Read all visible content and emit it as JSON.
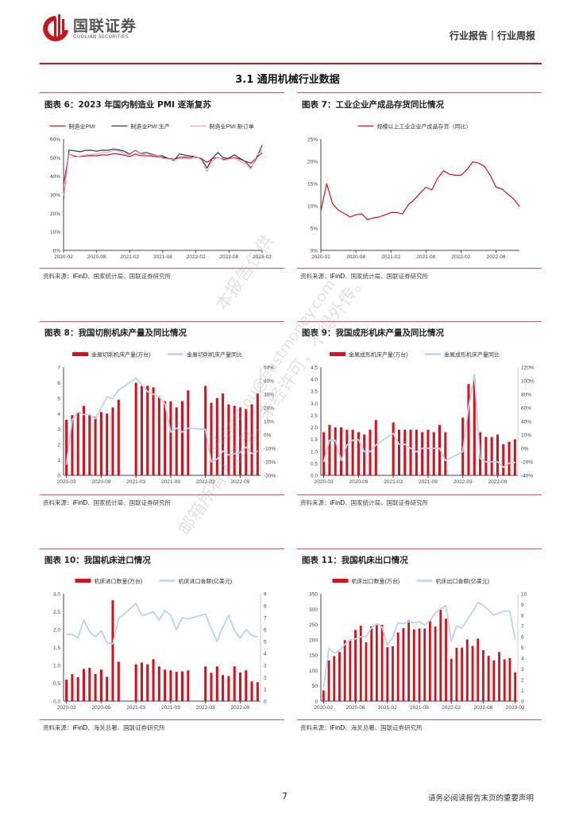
{
  "header": {
    "logo_cn": "国联证券",
    "logo_en": "GUOLIAN SECURITIES",
    "category": "行业报告｜行业周报"
  },
  "section_title": "3.1 通用机械行业数据",
  "figures": [
    {
      "title": "图表 6：2023 年国内制造业 PMI 逐渐复苏",
      "source_label": "资料来源：",
      "source_ifind": "iFinD",
      "source_rest": "、国家统计局、国联证券研究所"
    },
    {
      "title": "图表 7：工业企业产成品存货同比情况",
      "source_label": "资料来源：",
      "source_ifind": "iFinD",
      "source_rest": "、国家统计局、国联证券研究所"
    },
    {
      "title": "图表 8：我国切削机床产量及同比情况",
      "source_label": "资料来源：",
      "source_ifind": "iFinD",
      "source_rest": "、国家统计局、国联证券研究所"
    },
    {
      "title": "图表 9：我国成形机床产量及同比情况",
      "source_label": "资料来源：",
      "source_ifind": "iFinD",
      "source_rest": "、国家统计局、国联证券研究所"
    },
    {
      "title": "图表 10：我国机床进口情况",
      "source_label": "资料来源：",
      "source_ifind": "iFinD",
      "source_rest": "、海关总署、国联证券研究所"
    },
    {
      "title": "图表 11：我国机床出口情况",
      "source_label": "资料来源：",
      "source_ifind": "iFinD",
      "source_rest": "、海关总署、国联证券研究所"
    }
  ],
  "chart_data": [
    {
      "type": "line",
      "x": [
        "2020-02",
        "2020-03",
        "2020-04",
        "2020-05",
        "2020-06",
        "2020-07",
        "2020-08",
        "2020-09",
        "2020-10",
        "2020-11",
        "2020-12",
        "2021-01",
        "2021-02",
        "2021-03",
        "2021-04",
        "2021-05",
        "2021-06",
        "2021-07",
        "2021-08",
        "2021-09",
        "2021-10",
        "2021-11",
        "2021-12",
        "2022-01",
        "2022-02",
        "2022-03",
        "2022-04",
        "2022-05",
        "2022-06",
        "2022-07",
        "2022-08",
        "2022-09",
        "2022-10",
        "2022-11",
        "2022-12",
        "2023-01",
        "2023-02"
      ],
      "xticks": [
        "2020-02",
        "2020-08",
        "2021-02",
        "2021-08",
        "2022-02",
        "2022-08",
        "2023-02"
      ],
      "ylim": [
        0,
        60
      ],
      "yticks": [
        "0%",
        "10%",
        "20%",
        "30%",
        "40%",
        "50%",
        "60%"
      ],
      "legend": "top",
      "series": [
        {
          "name": "制造业PMI",
          "color": "#d7101c",
          "values": [
            35.7,
            52.0,
            50.8,
            50.6,
            50.9,
            51.1,
            51.0,
            51.5,
            51.4,
            52.1,
            51.9,
            51.3,
            50.6,
            51.9,
            51.1,
            51.0,
            50.9,
            50.4,
            50.1,
            49.6,
            49.2,
            50.1,
            50.3,
            50.1,
            50.2,
            49.5,
            47.4,
            49.6,
            50.2,
            49.0,
            49.4,
            50.1,
            49.2,
            48.0,
            47.0,
            50.1,
            52.6
          ]
        },
        {
          "name": "制造业PMI:生产",
          "color": "#1f3a6e",
          "values": [
            27.8,
            54.1,
            53.7,
            53.2,
            53.9,
            54.0,
            53.5,
            54.0,
            53.9,
            54.7,
            54.2,
            53.5,
            51.9,
            53.9,
            52.2,
            52.7,
            51.9,
            51.0,
            50.9,
            49.5,
            48.4,
            52.0,
            51.4,
            50.9,
            50.4,
            49.5,
            44.4,
            49.7,
            52.8,
            49.8,
            49.8,
            51.5,
            49.6,
            47.8,
            44.6,
            49.8,
            56.7
          ]
        },
        {
          "name": "制造业PMI:新订单",
          "color": "#f3a3ab",
          "values": [
            29.3,
            52.0,
            50.2,
            50.9,
            51.4,
            51.7,
            52.0,
            52.8,
            52.8,
            53.9,
            53.6,
            52.3,
            51.5,
            53.6,
            52.0,
            51.3,
            51.5,
            50.9,
            49.6,
            49.3,
            48.8,
            49.4,
            49.7,
            49.3,
            50.7,
            48.8,
            42.6,
            48.2,
            50.4,
            48.5,
            49.2,
            49.8,
            48.1,
            46.4,
            43.9,
            50.9,
            54.1
          ]
        }
      ]
    },
    {
      "type": "line",
      "x": [
        "2020-02",
        "2020-03",
        "2020-04",
        "2020-05",
        "2020-06",
        "2020-07",
        "2020-08",
        "2020-09",
        "2020-10",
        "2020-11",
        "2020-12",
        "2021-01",
        "2021-02",
        "2021-03",
        "2021-04",
        "2021-05",
        "2021-06",
        "2021-07",
        "2021-08",
        "2021-09",
        "2021-10",
        "2021-11",
        "2021-12",
        "2022-01",
        "2022-02",
        "2022-03",
        "2022-04",
        "2022-05",
        "2022-06",
        "2022-07",
        "2022-08",
        "2022-09",
        "2022-10",
        "2022-11",
        "2022-12"
      ],
      "xticks": [
        "2020-02",
        "2020-08",
        "2021-02",
        "2021-08",
        "2022-02",
        "2022-08"
      ],
      "ylim": [
        0,
        25
      ],
      "yticks": [
        "0%",
        "5%",
        "10%",
        "15%",
        "20%",
        "25%"
      ],
      "legend": "top",
      "series": [
        {
          "name": "规模以上工业企业产成品存货（同比）",
          "color": "#d7101c",
          "values": [
            8.9,
            15.0,
            10.5,
            9.0,
            8.3,
            7.5,
            8.0,
            8.2,
            6.9,
            7.3,
            7.5,
            8.0,
            8.5,
            8.5,
            8.2,
            10.3,
            11.4,
            12.9,
            14.2,
            13.6,
            16.2,
            17.9,
            17.1,
            16.9,
            16.9,
            18.1,
            19.9,
            19.6,
            18.9,
            16.9,
            14.2,
            13.8,
            12.7,
            11.6,
            9.9
          ]
        }
      ]
    },
    {
      "type": "bar+line",
      "x": [
        "2020-03",
        "2020-04",
        "2020-05",
        "2020-06",
        "2020-07",
        "2020-08",
        "2020-09",
        "2020-10",
        "2020-11",
        "2020-12",
        "2021-01",
        "2021-02",
        "2021-03",
        "2021-04",
        "2021-05",
        "2021-06",
        "2021-07",
        "2021-08",
        "2021-09",
        "2021-10",
        "2021-11",
        "2021-12",
        "2022-01",
        "2022-02",
        "2022-03",
        "2022-04",
        "2022-05",
        "2022-06",
        "2022-07",
        "2022-08",
        "2022-09",
        "2022-10",
        "2022-11",
        "2022-12"
      ],
      "xticks": [
        "2020-03",
        "2020-09",
        "2021-03",
        "2021-09",
        "2022-03",
        "2022-09"
      ],
      "ylim": [
        0,
        7
      ],
      "yticks": [
        "0",
        "1",
        "2",
        "3",
        "4",
        "5",
        "6",
        "7"
      ],
      "y2lim": [
        -30,
        50
      ],
      "y2ticks": [
        "-30%",
        "-20%",
        "-10%",
        "0%",
        "10%",
        "20%",
        "30%",
        "40%",
        "50%"
      ],
      "legend": "top",
      "series": [
        {
          "name": "金属切削机床产量(万台)",
          "kind": "bar",
          "color": "#d7101c",
          "values": [
            3.6,
            3.9,
            4.1,
            4.5,
            3.9,
            3.8,
            4.1,
            4.0,
            4.4,
            4.9,
            null,
            null,
            6.0,
            5.8,
            5.8,
            5.7,
            5.1,
            4.8,
            4.8,
            4.4,
            4.8,
            5.5,
            null,
            null,
            5.8,
            4.7,
            5.0,
            5.3,
            4.6,
            4.5,
            4.4,
            4.3,
            4.6,
            5.3
          ]
        },
        {
          "name": "金属切削机床产量同比",
          "kind": "line",
          "axis": "right",
          "color": "#b7d4ee",
          "values": [
            -22,
            11,
            17,
            15,
            15,
            12,
            20,
            28,
            27,
            33,
            null,
            null,
            42,
            37,
            32,
            30,
            28,
            23,
            2,
            5,
            2,
            5,
            null,
            null,
            4,
            -20,
            -18,
            -12,
            -15,
            -14,
            -13,
            -9,
            -14,
            -12
          ]
        }
      ]
    },
    {
      "type": "bar+line",
      "x": [
        "2020-03",
        "2020-04",
        "2020-05",
        "2020-06",
        "2020-07",
        "2020-08",
        "2020-09",
        "2020-10",
        "2020-11",
        "2020-12",
        "2021-01",
        "2021-02",
        "2021-03",
        "2021-04",
        "2021-05",
        "2021-06",
        "2021-07",
        "2021-08",
        "2021-09",
        "2021-10",
        "2021-11",
        "2021-12",
        "2022-01",
        "2022-02",
        "2022-03",
        "2022-04",
        "2022-05",
        "2022-06",
        "2022-07",
        "2022-08",
        "2022-09",
        "2022-10",
        "2022-11",
        "2022-12"
      ],
      "xticks": [
        "2020-03",
        "2020-09",
        "2021-03",
        "2021-09",
        "2022-03",
        "2022-09"
      ],
      "ylim": [
        0,
        4.5
      ],
      "yticks": [
        "0.0",
        "0.5",
        "1.0",
        "1.5",
        "2.0",
        "2.5",
        "3.0",
        "3.5",
        "4.0",
        "4.5"
      ],
      "y2lim": [
        -40,
        120
      ],
      "y2ticks": [
        "-40%",
        "-20%",
        "0%",
        "20%",
        "40%",
        "60%",
        "80%",
        "100%",
        "120%"
      ],
      "legend": "top",
      "series": [
        {
          "name": "金属成形机床产量(万台)",
          "kind": "bar",
          "color": "#d7101c",
          "values": [
            1.8,
            2.1,
            2.0,
            2.0,
            1.9,
            1.9,
            1.8,
            1.7,
            1.9,
            2.3,
            null,
            null,
            2.2,
            1.9,
            1.9,
            1.9,
            1.9,
            1.8,
            1.9,
            1.8,
            2.1,
            1.8,
            null,
            null,
            2.4,
            3.8,
            4.0,
            1.8,
            1.6,
            1.6,
            1.7,
            1.3,
            1.4,
            1.5
          ]
        },
        {
          "name": "金属成形机床产量同比",
          "kind": "line",
          "axis": "right",
          "color": "#b7d4ee",
          "values": [
            -20,
            12,
            12,
            -18,
            5,
            12,
            13,
            -5,
            -5,
            5,
            null,
            null,
            22,
            6,
            6,
            0,
            -5,
            0,
            0,
            0,
            0,
            -18,
            null,
            null,
            -5,
            60,
            110,
            -15,
            -20,
            -20,
            -20,
            -28,
            -22,
            -21
          ]
        }
      ]
    },
    {
      "type": "bar+line",
      "x": [
        "2020-03",
        "2020-04",
        "2020-05",
        "2020-06",
        "2020-07",
        "2020-08",
        "2020-09",
        "2020-10",
        "2020-11",
        "2020-12",
        "2021-01",
        "2021-02",
        "2021-03",
        "2021-04",
        "2021-05",
        "2021-06",
        "2021-07",
        "2021-08",
        "2021-09",
        "2021-10",
        "2021-11",
        "2021-12",
        "2022-01",
        "2022-02",
        "2022-03",
        "2022-04",
        "2022-05",
        "2022-06",
        "2022-07",
        "2022-08",
        "2022-09",
        "2022-10",
        "2022-11",
        "2022-12"
      ],
      "xticks": [
        "2020-03",
        "2020-09",
        "2021-03",
        "2021-09",
        "2022-03",
        "2022-09"
      ],
      "ylim": [
        0,
        3.0
      ],
      "yticks": [
        "0.0",
        "0.5",
        "1.0",
        "1.5",
        "2.0",
        "2.5",
        "3.0"
      ],
      "y2lim": [
        0,
        9
      ],
      "y2ticks": [
        "0",
        "1",
        "2",
        "3",
        "4",
        "5",
        "6",
        "7",
        "8",
        "9"
      ],
      "legend": "top",
      "series": [
        {
          "name": "机床进口数量(万台)",
          "kind": "bar",
          "color": "#d7101c",
          "values": [
            0.6,
            0.75,
            0.67,
            0.9,
            0.93,
            0.76,
            0.88,
            0.68,
            2.82,
            1.1,
            null,
            null,
            1.03,
            1.08,
            1.03,
            1.17,
            0.97,
            0.88,
            0.86,
            0.82,
            0.83,
            0.86,
            null,
            null,
            0.97,
            0.79,
            0.97,
            0.73,
            0.7,
            0.97,
            0.8,
            0.86,
            0.55,
            0.53
          ]
        },
        {
          "name": "机床进口金额(亿美元)",
          "kind": "line",
          "axis": "right",
          "color": "#b7d4ee",
          "values": [
            5.6,
            5.6,
            5.3,
            6.8,
            5.8,
            5.4,
            5.9,
            4.9,
            4.8,
            6.9,
            null,
            null,
            8.2,
            7.2,
            7.3,
            7.5,
            6.8,
            7.6,
            7.2,
            6.0,
            7.0,
            6.9,
            null,
            null,
            7.3,
            6.1,
            5.0,
            6.2,
            7.2,
            5.9,
            5.3,
            6.0,
            5.5,
            5.4
          ]
        }
      ]
    },
    {
      "type": "bar+line",
      "x": [
        "2020-02",
        "2020-03",
        "2020-04",
        "2020-05",
        "2020-06",
        "2020-07",
        "2020-08",
        "2020-09",
        "2020-10",
        "2020-11",
        "2020-12",
        "2021-01",
        "2021-02",
        "2021-03",
        "2021-04",
        "2021-05",
        "2021-06",
        "2021-07",
        "2021-08",
        "2021-09",
        "2021-10",
        "2021-11",
        "2021-12",
        "2022-01",
        "2022-02",
        "2022-03",
        "2022-04",
        "2022-05",
        "2022-06",
        "2022-07",
        "2022-08",
        "2022-09",
        "2022-10",
        "2022-11",
        "2022-12",
        "2023-01",
        "2023-02"
      ],
      "xticks": [
        "2020-02",
        "2020-08",
        "2021-02",
        "2021-08",
        "2022-02",
        "2022-08",
        "2023-02"
      ],
      "ylim": [
        0,
        350
      ],
      "yticks": [
        "0",
        "50",
        "100",
        "150",
        "200",
        "250",
        "300",
        "350"
      ],
      "y2lim": [
        0,
        10
      ],
      "y2ticks": [
        "0",
        "1",
        "2",
        "3",
        "4",
        "5",
        "6",
        "7",
        "8",
        "9",
        "10"
      ],
      "legend": "top",
      "series": [
        {
          "name": "机床出口数量(万台)",
          "kind": "bar",
          "color": "#d7101c",
          "values": [
            35,
            133,
            147,
            160,
            199,
            200,
            232,
            246,
            192,
            244,
            248,
            249,
            176,
            179,
            224,
            238,
            263,
            234,
            237,
            237,
            263,
            243,
            298,
            269,
            138,
            174,
            174,
            201,
            180,
            204,
            166,
            148,
            133,
            160,
            136,
            140,
            94
          ]
        },
        {
          "name": "机床出口金额(亿美元)",
          "kind": "line",
          "axis": "right",
          "color": "#b7d4ee",
          "values": [
            1.3,
            4.9,
            4.5,
            4.7,
            5.3,
            5.7,
            5.8,
            6.0,
            6.0,
            6.8,
            7.2,
            6.9,
            5.2,
            6.0,
            7.3,
            7.2,
            7.4,
            7.3,
            7.4,
            7.1,
            7.5,
            8.2,
            8.6,
            8.9,
            5.6,
            7.0,
            6.8,
            7.6,
            8.3,
            9.2,
            8.9,
            8.5,
            8.0,
            8.2,
            8.4,
            8.4,
            5.8
          ]
        }
      ]
    }
  ],
  "watermark": [
    "本报告仅供",
    "vbjieshou@eastmoney.com",
    "邮箱所有人使用，未经许可，不得外传。"
  ],
  "footer": {
    "page": "7",
    "note": "请务必阅读报告末页的重要声明"
  },
  "colors": {
    "brand_red": "#c8161d",
    "rule": "#d9536b"
  }
}
